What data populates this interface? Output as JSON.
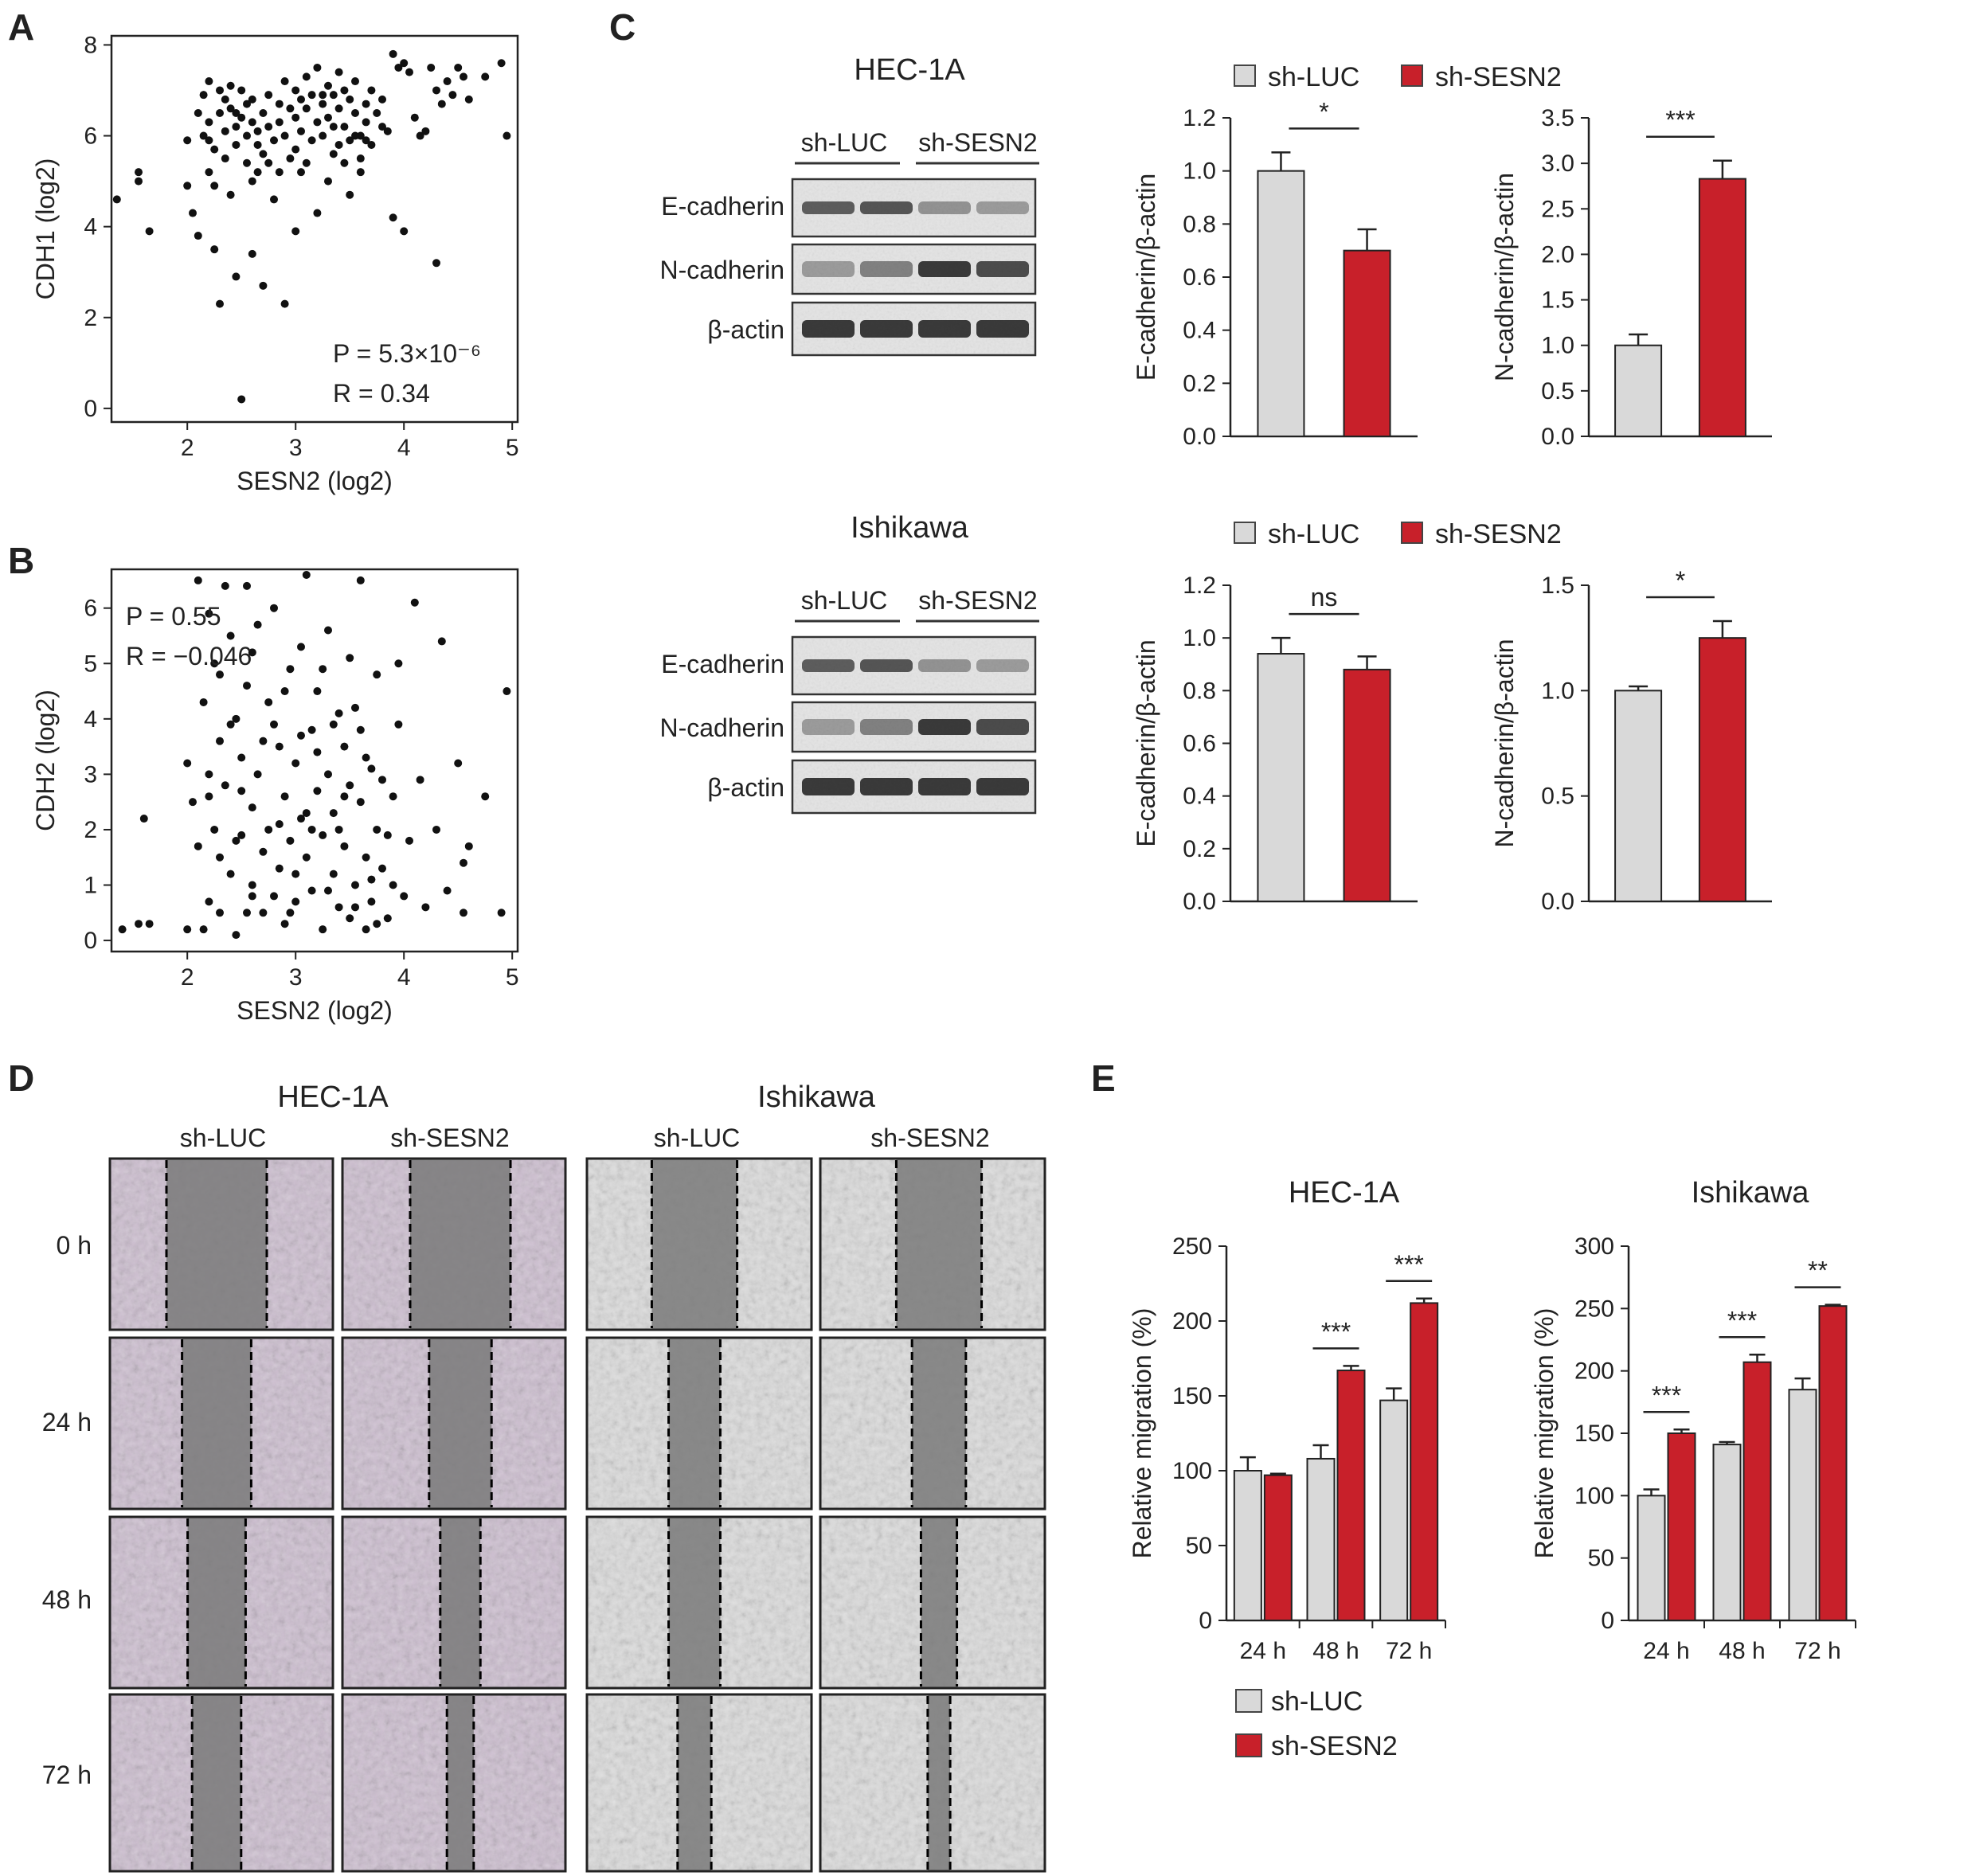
{
  "panels": {
    "A": "A",
    "B": "B",
    "C": "C",
    "D": "D",
    "E": "E"
  },
  "colors": {
    "sh_luc": "#d9d9d9",
    "sh_sesn2": "#c8202a",
    "axis": "#333333"
  },
  "legend": {
    "sh_luc": "sh-LUC",
    "sh_sesn2": "sh-SESN2"
  },
  "blots": {
    "hec": {
      "title": "HEC-1A",
      "group_labels": [
        "sh-LUC",
        "sh-SESN2"
      ],
      "rows": [
        "E-cadherin",
        "N-cadherin",
        "β-actin"
      ]
    },
    "ishi": {
      "title": "Ishikawa",
      "group_labels": [
        "sh-LUC",
        "sh-SESN2"
      ],
      "rows": [
        "E-cadherin",
        "N-cadherin",
        "β-actin"
      ]
    }
  },
  "scratch": {
    "cells": [
      "HEC-1A",
      "Ishikawa"
    ],
    "groups": [
      "sh-LUC",
      "sh-SESN2",
      "sh-LUC",
      "sh-SESN2"
    ],
    "times": [
      "0 h",
      "24 h",
      "48 h",
      "72 h"
    ]
  },
  "chart_data": [
    {
      "id": "A",
      "type": "scatter",
      "xlabel": "SESN2 (log2)",
      "ylabel": "CDH1 (log2)",
      "xlim": [
        1.3,
        5.05
      ],
      "ylim": [
        -0.3,
        8.2
      ],
      "xticks": [
        2,
        3,
        4,
        5
      ],
      "yticks": [
        0,
        2,
        4,
        6,
        8
      ],
      "annotations": [
        "P = 5.3×10⁻⁶",
        "R = 0.34"
      ],
      "points": [
        [
          1.35,
          4.6
        ],
        [
          1.55,
          5.0
        ],
        [
          1.55,
          5.2
        ],
        [
          1.65,
          3.9
        ],
        [
          2.0,
          5.9
        ],
        [
          2.0,
          4.9
        ],
        [
          2.05,
          4.3
        ],
        [
          2.1,
          6.5
        ],
        [
          2.15,
          6.9
        ],
        [
          2.2,
          7.2
        ],
        [
          2.2,
          6.3
        ],
        [
          2.25,
          5.7
        ],
        [
          2.25,
          4.9
        ],
        [
          2.3,
          7.0
        ],
        [
          2.3,
          6.5
        ],
        [
          2.35,
          6.1
        ],
        [
          2.35,
          5.5
        ],
        [
          2.4,
          7.1
        ],
        [
          2.4,
          6.6
        ],
        [
          2.45,
          6.2
        ],
        [
          2.45,
          5.8
        ],
        [
          2.5,
          7.0
        ],
        [
          2.5,
          6.4
        ],
        [
          2.55,
          6.0
        ],
        [
          2.55,
          5.4
        ],
        [
          2.6,
          6.8
        ],
        [
          2.6,
          6.3
        ],
        [
          2.65,
          6.1
        ],
        [
          2.7,
          6.5
        ],
        [
          2.7,
          5.6
        ],
        [
          2.75,
          6.9
        ],
        [
          2.75,
          6.2
        ],
        [
          2.8,
          5.9
        ],
        [
          2.85,
          6.7
        ],
        [
          2.85,
          6.3
        ],
        [
          2.9,
          7.2
        ],
        [
          2.9,
          6.0
        ],
        [
          2.95,
          6.6
        ],
        [
          3.0,
          7.0
        ],
        [
          3.0,
          6.4
        ],
        [
          3.0,
          5.7
        ],
        [
          3.05,
          6.8
        ],
        [
          3.05,
          6.1
        ],
        [
          3.1,
          7.3
        ],
        [
          3.1,
          6.6
        ],
        [
          3.15,
          5.9
        ],
        [
          3.15,
          6.9
        ],
        [
          3.2,
          6.3
        ],
        [
          3.2,
          7.5
        ],
        [
          3.25,
          6.7
        ],
        [
          3.25,
          6.0
        ],
        [
          3.3,
          7.1
        ],
        [
          3.3,
          6.4
        ],
        [
          3.35,
          6.9
        ],
        [
          3.35,
          5.6
        ],
        [
          3.4,
          7.4
        ],
        [
          3.4,
          6.6
        ],
        [
          3.45,
          6.2
        ],
        [
          3.45,
          7.0
        ],
        [
          3.5,
          6.8
        ],
        [
          3.5,
          5.9
        ],
        [
          3.55,
          7.2
        ],
        [
          3.55,
          6.5
        ],
        [
          3.6,
          6.0
        ],
        [
          3.6,
          5.5
        ],
        [
          3.65,
          6.7
        ],
        [
          3.65,
          6.3
        ],
        [
          3.7,
          7.0
        ],
        [
          3.75,
          6.5
        ],
        [
          3.8,
          6.8
        ],
        [
          3.85,
          6.1
        ],
        [
          3.9,
          7.8
        ],
        [
          3.95,
          7.5
        ],
        [
          4.0,
          7.6
        ],
        [
          4.05,
          7.4
        ],
        [
          4.1,
          6.4
        ],
        [
          4.15,
          6.0
        ],
        [
          4.2,
          6.1
        ],
        [
          4.25,
          7.5
        ],
        [
          4.3,
          7.0
        ],
        [
          4.35,
          6.7
        ],
        [
          4.4,
          7.2
        ],
        [
          4.45,
          6.9
        ],
        [
          4.5,
          7.5
        ],
        [
          4.55,
          7.3
        ],
        [
          4.6,
          6.8
        ],
        [
          4.75,
          7.3
        ],
        [
          4.9,
          7.6
        ],
        [
          4.95,
          6.0
        ],
        [
          2.1,
          3.8
        ],
        [
          2.25,
          3.5
        ],
        [
          2.3,
          2.3
        ],
        [
          2.45,
          2.9
        ],
        [
          2.5,
          0.2
        ],
        [
          2.6,
          3.4
        ],
        [
          2.7,
          2.7
        ],
        [
          2.9,
          2.3
        ],
        [
          3.0,
          3.9
        ],
        [
          3.2,
          4.3
        ],
        [
          3.5,
          4.7
        ],
        [
          3.9,
          4.2
        ],
        [
          4.0,
          3.9
        ],
        [
          4.3,
          3.2
        ],
        [
          2.2,
          5.2
        ],
        [
          2.4,
          4.7
        ],
        [
          2.65,
          5.2
        ],
        [
          2.8,
          4.6
        ],
        [
          3.3,
          5.0
        ],
        [
          3.6,
          5.2
        ],
        [
          2.15,
          6.0
        ],
        [
          2.35,
          6.8
        ],
        [
          2.55,
          6.7
        ],
        [
          2.65,
          5.8
        ],
        [
          2.95,
          5.5
        ],
        [
          3.1,
          5.4
        ],
        [
          3.35,
          6.2
        ],
        [
          3.45,
          5.4
        ],
        [
          3.7,
          5.8
        ],
        [
          3.8,
          6.2
        ],
        [
          2.45,
          6.5
        ],
        [
          2.75,
          5.4
        ],
        [
          3.05,
          5.2
        ],
        [
          3.25,
          6.9
        ],
        [
          3.55,
          6.0
        ],
        [
          3.65,
          5.9
        ],
        [
          2.2,
          5.9
        ],
        [
          2.6,
          5.0
        ],
        [
          2.85,
          5.2
        ],
        [
          3.4,
          5.8
        ]
      ]
    },
    {
      "id": "B",
      "type": "scatter",
      "xlabel": "SESN2 (log2)",
      "ylabel": "CDH2 (log2)",
      "xlim": [
        1.3,
        5.05
      ],
      "ylim": [
        -0.2,
        6.7
      ],
      "xticks": [
        2,
        3,
        4,
        5
      ],
      "yticks": [
        0,
        1,
        2,
        3,
        4,
        5,
        6
      ],
      "annotations": [
        "P = 0.55",
        "R = −0.046"
      ],
      "points": [
        [
          1.4,
          0.2
        ],
        [
          1.55,
          0.3
        ],
        [
          1.6,
          2.2
        ],
        [
          1.65,
          0.3
        ],
        [
          2.0,
          3.2
        ],
        [
          2.0,
          0.2
        ],
        [
          2.05,
          2.5
        ],
        [
          2.1,
          1.7
        ],
        [
          2.1,
          6.5
        ],
        [
          2.15,
          4.3
        ],
        [
          2.2,
          5.9
        ],
        [
          2.2,
          3.0
        ],
        [
          2.2,
          0.7
        ],
        [
          2.25,
          5.0
        ],
        [
          2.25,
          2.0
        ],
        [
          2.3,
          4.8
        ],
        [
          2.3,
          3.6
        ],
        [
          2.3,
          0.5
        ],
        [
          2.35,
          6.4
        ],
        [
          2.35,
          2.8
        ],
        [
          2.4,
          5.5
        ],
        [
          2.4,
          1.2
        ],
        [
          2.45,
          4.0
        ],
        [
          2.45,
          0.1
        ],
        [
          2.5,
          3.3
        ],
        [
          2.5,
          1.9
        ],
        [
          2.55,
          6.4
        ],
        [
          2.55,
          4.6
        ],
        [
          2.6,
          2.4
        ],
        [
          2.6,
          1.0
        ],
        [
          2.65,
          5.7
        ],
        [
          2.65,
          3.0
        ],
        [
          2.7,
          1.6
        ],
        [
          2.7,
          0.5
        ],
        [
          2.75,
          4.3
        ],
        [
          2.75,
          2.0
        ],
        [
          2.8,
          6.0
        ],
        [
          2.8,
          0.8
        ],
        [
          2.85,
          3.5
        ],
        [
          2.85,
          1.3
        ],
        [
          2.9,
          2.6
        ],
        [
          2.9,
          0.3
        ],
        [
          2.95,
          4.9
        ],
        [
          2.95,
          1.8
        ],
        [
          3.0,
          3.2
        ],
        [
          3.0,
          0.7
        ],
        [
          3.05,
          2.2
        ],
        [
          3.05,
          5.3
        ],
        [
          3.1,
          6.6
        ],
        [
          3.1,
          1.5
        ],
        [
          3.15,
          3.8
        ],
        [
          3.15,
          0.9
        ],
        [
          3.2,
          2.7
        ],
        [
          3.2,
          4.5
        ],
        [
          3.25,
          1.9
        ],
        [
          3.25,
          0.2
        ],
        [
          3.3,
          5.6
        ],
        [
          3.3,
          3.0
        ],
        [
          3.35,
          1.2
        ],
        [
          3.35,
          2.3
        ],
        [
          3.4,
          4.1
        ],
        [
          3.4,
          0.6
        ],
        [
          3.45,
          3.5
        ],
        [
          3.45,
          1.7
        ],
        [
          3.5,
          2.8
        ],
        [
          3.5,
          0.4
        ],
        [
          3.55,
          4.2
        ],
        [
          3.55,
          1.0
        ],
        [
          3.6,
          6.5
        ],
        [
          3.6,
          2.5
        ],
        [
          3.65,
          0.2
        ],
        [
          3.65,
          1.5
        ],
        [
          3.7,
          3.1
        ],
        [
          3.7,
          0.7
        ],
        [
          3.75,
          2.0
        ],
        [
          3.75,
          4.8
        ],
        [
          3.8,
          1.3
        ],
        [
          3.85,
          0.4
        ],
        [
          3.9,
          2.6
        ],
        [
          3.9,
          1.0
        ],
        [
          3.95,
          5.0
        ],
        [
          3.95,
          3.9
        ],
        [
          4.0,
          0.8
        ],
        [
          4.05,
          1.8
        ],
        [
          4.1,
          6.1
        ],
        [
          4.15,
          2.9
        ],
        [
          4.2,
          0.6
        ],
        [
          4.3,
          2.0
        ],
        [
          4.35,
          5.4
        ],
        [
          4.4,
          0.9
        ],
        [
          4.5,
          3.2
        ],
        [
          4.55,
          1.4
        ],
        [
          4.55,
          0.5
        ],
        [
          4.6,
          1.7
        ],
        [
          4.75,
          2.6
        ],
        [
          4.9,
          0.5
        ],
        [
          4.95,
          4.5
        ],
        [
          2.2,
          2.6
        ],
        [
          2.4,
          3.9
        ],
        [
          2.6,
          5.2
        ],
        [
          2.8,
          3.9
        ],
        [
          3.0,
          1.2
        ],
        [
          3.2,
          3.4
        ],
        [
          3.4,
          2.0
        ],
        [
          3.6,
          3.8
        ],
        [
          3.8,
          2.9
        ],
        [
          2.5,
          2.7
        ],
        [
          2.7,
          3.6
        ],
        [
          2.9,
          4.5
        ],
        [
          3.1,
          2.3
        ],
        [
          3.3,
          0.9
        ],
        [
          3.5,
          5.1
        ],
        [
          3.7,
          1.1
        ],
        [
          2.3,
          1.5
        ],
        [
          2.6,
          0.8
        ],
        [
          2.85,
          2.1
        ],
        [
          3.05,
          3.7
        ],
        [
          3.25,
          4.9
        ],
        [
          3.45,
          2.6
        ],
        [
          3.65,
          3.3
        ],
        [
          3.85,
          1.9
        ],
        [
          2.45,
          1.8
        ],
        [
          2.95,
          0.5
        ],
        [
          3.35,
          3.9
        ],
        [
          3.55,
          0.6
        ],
        [
          2.15,
          0.2
        ],
        [
          2.55,
          0.5
        ],
        [
          3.15,
          2.0
        ],
        [
          3.75,
          0.3
        ]
      ]
    },
    {
      "id": "C1",
      "type": "bar",
      "ylabel": "E-cadherin/β-actin",
      "categories": [
        "sh-LUC",
        "sh-SESN2"
      ],
      "values": [
        1.0,
        0.7
      ],
      "errors": [
        0.07,
        0.08
      ],
      "ylim": [
        0,
        1.2
      ],
      "yticks": [
        0.0,
        0.2,
        0.4,
        0.6,
        0.8,
        1.0,
        1.2
      ],
      "yformat": 1,
      "significance": "*"
    },
    {
      "id": "C2",
      "type": "bar",
      "ylabel": "N-cadherin/β-actin",
      "categories": [
        "sh-LUC",
        "sh-SESN2"
      ],
      "values": [
        1.0,
        2.83
      ],
      "errors": [
        0.12,
        0.2
      ],
      "ylim": [
        0,
        3.5
      ],
      "yticks": [
        0.0,
        0.5,
        1.0,
        1.5,
        2.0,
        2.5,
        3.0,
        3.5
      ],
      "yformat": 1,
      "significance": "***"
    },
    {
      "id": "C3",
      "type": "bar",
      "ylabel": "E-cadherin/β-actin",
      "categories": [
        "sh-LUC",
        "sh-SESN2"
      ],
      "values": [
        0.94,
        0.88
      ],
      "errors": [
        0.06,
        0.05
      ],
      "ylim": [
        0,
        1.2
      ],
      "yticks": [
        0.0,
        0.2,
        0.4,
        0.6,
        0.8,
        1.0,
        1.2
      ],
      "yformat": 1,
      "significance": "ns"
    },
    {
      "id": "C4",
      "type": "bar",
      "ylabel": "N-cadherin/β-actin",
      "categories": [
        "sh-LUC",
        "sh-SESN2"
      ],
      "values": [
        1.0,
        1.25
      ],
      "errors": [
        0.02,
        0.08
      ],
      "ylim": [
        0,
        1.5
      ],
      "yticks": [
        0.0,
        0.5,
        1.0,
        1.5
      ],
      "yformat": 1,
      "significance": "*"
    },
    {
      "id": "E1",
      "type": "bar",
      "title": "HEC-1A",
      "ylabel": "Relative migration (%)",
      "categories": [
        "24 h",
        "48 h",
        "72 h"
      ],
      "series": [
        {
          "name": "sh-LUC",
          "values": [
            100,
            108,
            147
          ],
          "errors": [
            9,
            9,
            8
          ]
        },
        {
          "name": "sh-SESN2",
          "values": [
            97,
            167,
            212
          ],
          "errors": [
            1,
            3,
            3
          ]
        }
      ],
      "ylim": [
        0,
        250
      ],
      "yticks": [
        0,
        50,
        100,
        150,
        200,
        250
      ],
      "yformat": 0,
      "significance": [
        "",
        "***",
        "***"
      ]
    },
    {
      "id": "E2",
      "type": "bar",
      "title": "Ishikawa",
      "ylabel": "Relative migration (%)",
      "categories": [
        "24 h",
        "48 h",
        "72 h"
      ],
      "series": [
        {
          "name": "sh-LUC",
          "values": [
            100,
            141,
            185
          ],
          "errors": [
            5,
            2,
            9
          ]
        },
        {
          "name": "sh-SESN2",
          "values": [
            150,
            207,
            252
          ],
          "errors": [
            3,
            6,
            1
          ]
        }
      ],
      "ylim": [
        0,
        300
      ],
      "yticks": [
        0,
        50,
        100,
        150,
        200,
        250,
        300
      ],
      "yformat": 0,
      "significance": [
        "***",
        "***",
        "**"
      ]
    }
  ]
}
